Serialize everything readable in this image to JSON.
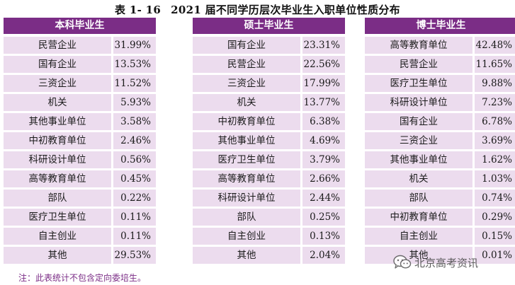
{
  "title": {
    "number": "表 1- 16",
    "text": "2021 届不同学历层次毕业生入职单位性质分布"
  },
  "panels": [
    {
      "header": "本科毕业生",
      "rows": [
        {
          "name": "民营企业",
          "value": "31.99%"
        },
        {
          "name": "国有企业",
          "value": "13.53%"
        },
        {
          "name": "三资企业",
          "value": "11.52%"
        },
        {
          "name": "机关",
          "value": "5.93%"
        },
        {
          "name": "其他事业单位",
          "value": "3.58%"
        },
        {
          "name": "中初教育单位",
          "value": "2.46%"
        },
        {
          "name": "科研设计单位",
          "value": "0.56%"
        },
        {
          "name": "高等教育单位",
          "value": "0.45%"
        },
        {
          "name": "部队",
          "value": "0.22%"
        },
        {
          "name": "医疗卫生单位",
          "value": "0.11%"
        },
        {
          "name": "自主创业",
          "value": "0.11%"
        },
        {
          "name": "其他",
          "value": "29.53%"
        }
      ]
    },
    {
      "header": "硕士毕业生",
      "rows": [
        {
          "name": "国有企业",
          "value": "23.31%"
        },
        {
          "name": "民营企业",
          "value": "22.56%"
        },
        {
          "name": "三资企业",
          "value": "17.99%"
        },
        {
          "name": "机关",
          "value": "13.77%"
        },
        {
          "name": "中初教育单位",
          "value": "6.38%"
        },
        {
          "name": "其他事业单位",
          "value": "4.69%"
        },
        {
          "name": "医疗卫生单位",
          "value": "3.79%"
        },
        {
          "name": "高等教育单位",
          "value": "2.66%"
        },
        {
          "name": "科研设计单位",
          "value": "2.44%"
        },
        {
          "name": "部队",
          "value": "0.25%"
        },
        {
          "name": "自主创业",
          "value": "0.13%"
        },
        {
          "name": "其他",
          "value": "2.04%"
        }
      ]
    },
    {
      "header": "博士毕业生",
      "rows": [
        {
          "name": "高等教育单位",
          "value": "42.48%"
        },
        {
          "name": "民营企业",
          "value": "11.65%"
        },
        {
          "name": "医疗卫生单位",
          "value": "9.88%"
        },
        {
          "name": "科研设计单位",
          "value": "7.23%"
        },
        {
          "name": "国有企业",
          "value": "6.78%"
        },
        {
          "name": "三资企业",
          "value": "3.69%"
        },
        {
          "name": "其他事业单位",
          "value": "1.62%"
        },
        {
          "name": "机关",
          "value": "1.03%"
        },
        {
          "name": "部队",
          "value": "0.74%"
        },
        {
          "name": "中初教育单位",
          "value": "0.29%"
        },
        {
          "name": "自主创业",
          "value": "0.15%"
        },
        {
          "name": "其他",
          "value": "0.01%"
        }
      ]
    }
  ],
  "note": "注：此表统计不包含定向委培生。",
  "watermark": {
    "text": "北京高考资讯",
    "icon": "wechat-icon"
  },
  "colors": {
    "header_bg": "#7b2d86",
    "cell_bg": "#ecdcee",
    "note": "#7b2d86"
  }
}
